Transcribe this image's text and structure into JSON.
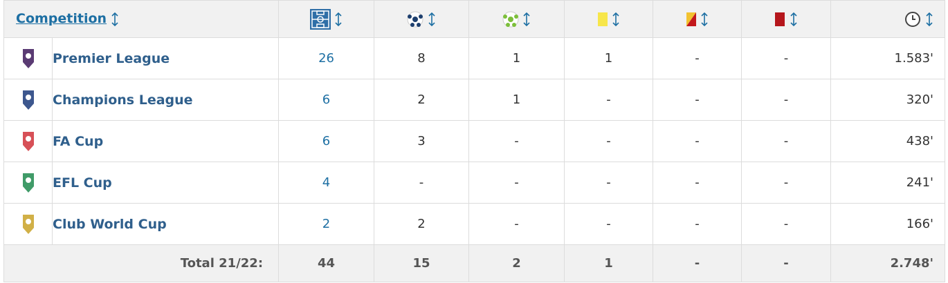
{
  "header": {
    "title": "Competition"
  },
  "rows": [
    {
      "name": "Premier League",
      "appearances": "26",
      "goals": "8",
      "assists": "1",
      "yellow": "1",
      "yellow_red": "-",
      "red": "-",
      "minutes": "1.583'"
    },
    {
      "name": "Champions League",
      "appearances": "6",
      "goals": "2",
      "assists": "1",
      "yellow": "-",
      "yellow_red": "-",
      "red": "-",
      "minutes": "320'"
    },
    {
      "name": "FA Cup",
      "appearances": "6",
      "goals": "3",
      "assists": "-",
      "yellow": "-",
      "yellow_red": "-",
      "red": "-",
      "minutes": "438'"
    },
    {
      "name": "EFL Cup",
      "appearances": "4",
      "goals": "-",
      "assists": "-",
      "yellow": "-",
      "yellow_red": "-",
      "red": "-",
      "minutes": "241'"
    },
    {
      "name": "Club World Cup",
      "appearances": "2",
      "goals": "2",
      "assists": "-",
      "yellow": "-",
      "yellow_red": "-",
      "red": "-",
      "minutes": "166'"
    }
  ],
  "total": {
    "label": "Total 21/22:",
    "appearances": "44",
    "goals": "15",
    "assists": "2",
    "yellow": "1",
    "yellow_red": "-",
    "red": "-",
    "minutes": "2.748'"
  }
}
